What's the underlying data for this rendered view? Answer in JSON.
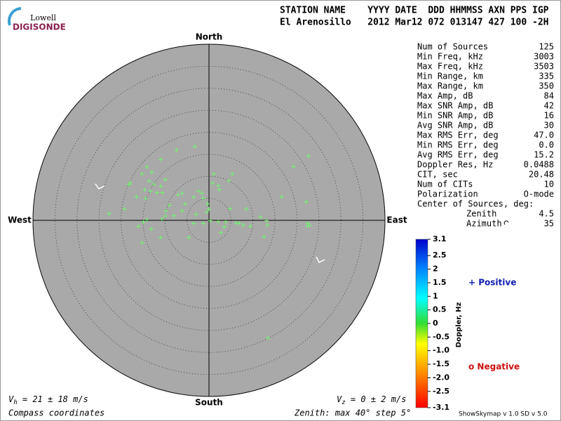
{
  "header": {
    "logo_top": "Lowell",
    "logo_main": "DIGISONDE",
    "labels": "STATION NAME    YYYY DATE  DDD HHMMSS AXN PPS IGP",
    "values": "El Arenosillo   2012 Mar12 072 013147 427 100 -2H"
  },
  "chart_data": {
    "type": "scatter",
    "marker": "+",
    "color": "#66ff66",
    "labels": {
      "north": "North",
      "south": "South",
      "east": "East",
      "west": "West"
    },
    "xlim": [
      -40,
      40
    ],
    "ylim": [
      -40,
      40
    ],
    "rticks": [
      5,
      10,
      15,
      20,
      25,
      30,
      35,
      40
    ],
    "x": [
      -7.4,
      -3.2,
      -11.0,
      -14.1,
      -13.0,
      -15.2,
      -17.9,
      -13.6,
      -12.5,
      -14.6,
      -10.9,
      -13.3,
      -11.8,
      -9.9,
      -18.2,
      -10.6,
      -16.5,
      -22.7,
      -19.2,
      -14.4,
      -9.0,
      -9.8,
      -8.0,
      -9.9,
      -10.7,
      -14.1,
      -14.9,
      -16.0,
      -13.1,
      -15.2,
      -11.0,
      -4.6,
      -6.1,
      -5.4,
      -7.0,
      -6.1,
      -3.5,
      -2.4,
      -1.6,
      -1.3,
      1.1,
      0.8,
      2.1,
      2.4,
      4.5,
      5.3,
      -0.3,
      0.0,
      -0.5,
      -2.9,
      -1.3,
      -3.5,
      0.3,
      2.1,
      3.8,
      3.5,
      6.1,
      6.9,
      7.8,
      9.4,
      8.5,
      11.7,
      13.1,
      13.3,
      12.5,
      16.5,
      19.2,
      22.1,
      22.4,
      22.9,
      22.4,
      22.6,
      13.4,
      2.7,
      4.8
    ],
    "y": [
      16.0,
      16.8,
      13.9,
      12.2,
      11.0,
      10.6,
      8.6,
      9.0,
      8.3,
      7.0,
      7.8,
      6.7,
      6.4,
      9.3,
      8.2,
      6.4,
      5.4,
      1.6,
      2.6,
      5.0,
      3.5,
      2.2,
      1.1,
      1.0,
      0.3,
      0.2,
      -0.3,
      -1.3,
      -1.9,
      -5.0,
      -3.8,
      -3.8,
      2.2,
      3.8,
      5.8,
      6.2,
      5.3,
      6.7,
      6.2,
      5.1,
      10.6,
      8.5,
      8.0,
      7.0,
      9.1,
      10.6,
      3.8,
      2.6,
      1.9,
      1.4,
      -0.6,
      -0.6,
      0.0,
      -0.2,
      -0.3,
      -1.4,
      -0.5,
      -0.6,
      -1.0,
      -1.3,
      2.6,
      0.8,
      0.0,
      -1.0,
      -3.7,
      5.4,
      12.3,
      4.3,
      -0.6,
      -1.0,
      -1.3,
      14.7,
      -26.6,
      -2.7,
      2.7
    ]
  },
  "stats": {
    "rows": [
      [
        "Num of Sources",
        "125"
      ],
      [
        "Min Freq, kHz",
        "3003"
      ],
      [
        "Max Freq, kHz",
        "3503"
      ],
      [
        "Min Range, km",
        "335"
      ],
      [
        "Max Range, km",
        "350"
      ],
      [
        "Max Amp, dB",
        "84"
      ],
      [
        "Max SNR Amp, dB",
        "42"
      ],
      [
        "Min SNR Amp, dB",
        "16"
      ],
      [
        "Avg SNR Amp, dB",
        "30"
      ],
      [
        "Max RMS Err, deg",
        "47.0"
      ],
      [
        "Min RMS Err, deg",
        "0.0"
      ],
      [
        "Avg RMS Err, deg",
        "15.2"
      ],
      [
        "Doppler Res, Hz",
        "0.0488"
      ],
      [
        "CIT, sec",
        "20.48"
      ],
      [
        "Num of CITs",
        "10"
      ],
      [
        "Polarization",
        "O-mode"
      ]
    ],
    "center_title": "Center of Sources, deg:",
    "center_rows": [
      [
        "Zenith",
        "4.5"
      ],
      [
        "Azimuth",
        "35"
      ]
    ]
  },
  "colorbar": {
    "title": "Doppler, Hz",
    "lim": [
      -3.1,
      3.1
    ],
    "ticks": [
      3.1,
      2.5,
      2,
      1.5,
      1,
      0.5,
      0,
      -0.5,
      {
        "value": -1,
        "label": "-1.0"
      },
      -1.5,
      {
        "value": -2,
        "label": "-2.0"
      },
      -2.5,
      -3.1
    ]
  },
  "legend": {
    "positive": "+ Positive",
    "negative": "o Negative"
  },
  "footer": {
    "vh": {
      "symbol": "V",
      "subscript": "h",
      "text": " = 21 ± 18 m/s"
    },
    "vz": {
      "symbol": "V",
      "subscript": "z",
      "text": " = 0 ± 2 m/s"
    },
    "coords": "Compass coordinates",
    "zenith": "Zenith: max 40°  step 5°",
    "version": "ShowSkymap v 1.0   SD v 5.0"
  }
}
